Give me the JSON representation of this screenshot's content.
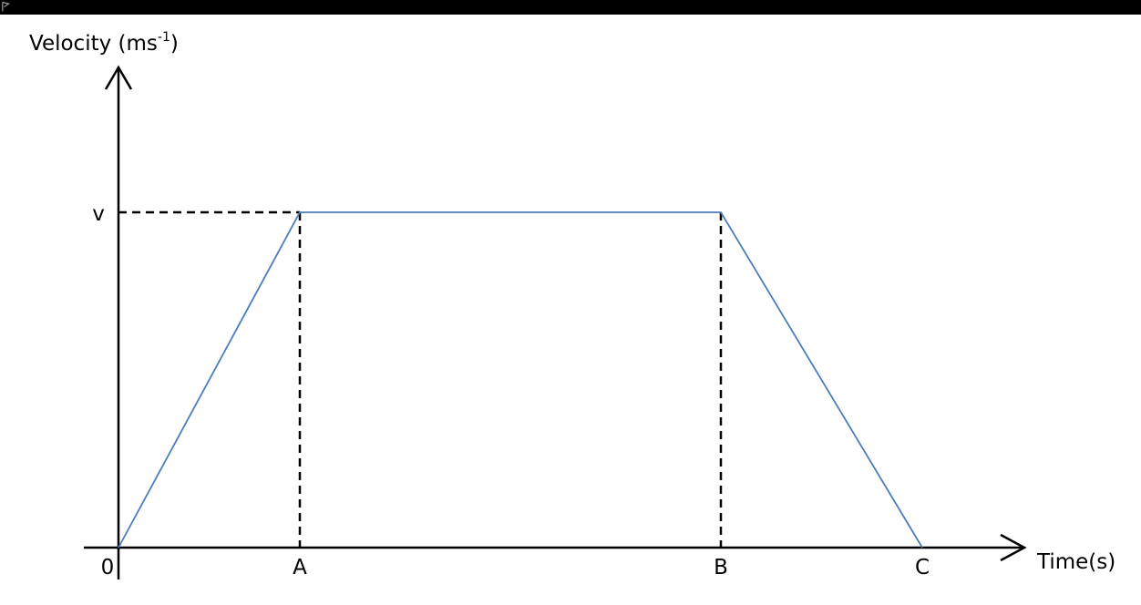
{
  "window": {
    "bar_color": "#000000"
  },
  "chart_data": {
    "type": "line",
    "title": "",
    "ylabel": "Velocity (ms",
    "ylabel_superscript": "-1",
    "ylabel_close": ")",
    "xlabel": "Time(s)",
    "x_ticks": [
      "0",
      "A",
      "B",
      "C"
    ],
    "y_ticks": [
      "v"
    ],
    "series": [
      {
        "color": "#4a7ebb",
        "points": [
          [
            "0",
            "0"
          ],
          [
            "A",
            "v"
          ],
          [
            "B",
            "v"
          ],
          [
            "C",
            "0"
          ]
        ]
      }
    ],
    "guides": {
      "style": "dashed",
      "color": "#000000",
      "to": [
        "A",
        "B"
      ],
      "at_level": "v"
    },
    "grid": false
  }
}
